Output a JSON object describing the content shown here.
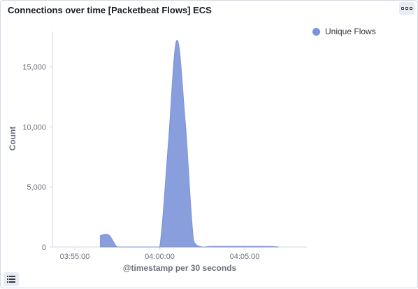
{
  "panel": {
    "title": "Connections over time [Packetbeat Flows] ECS",
    "options_icon": "ellipsis-icon",
    "legend_toggle_icon": "list-icon"
  },
  "chart_data": {
    "type": "area",
    "title": "Connections over time [Packetbeat Flows] ECS",
    "xlabel": "@timestamp per 30 seconds",
    "ylabel": "Count",
    "x_ticks": [
      "03:55:00",
      "04:00:00",
      "04:05:00"
    ],
    "y_ticks": [
      "0",
      "5,000",
      "10,000",
      "15,000"
    ],
    "ylim": [
      0,
      17500
    ],
    "series": [
      {
        "name": "Unique Flows",
        "color": "#7b93d9",
        "points": [
          {
            "x": "03:56:30",
            "y": 950
          },
          {
            "x": "03:57:00",
            "y": 1000
          },
          {
            "x": "03:57:30",
            "y": 0
          },
          {
            "x": "03:58:00",
            "y": 0
          },
          {
            "x": "03:58:30",
            "y": 0
          },
          {
            "x": "03:59:00",
            "y": 0
          },
          {
            "x": "03:59:30",
            "y": 0
          },
          {
            "x": "04:00:00",
            "y": 0
          },
          {
            "x": "04:00:30",
            "y": 8500
          },
          {
            "x": "04:01:00",
            "y": 17200
          },
          {
            "x": "04:01:30",
            "y": 10500
          },
          {
            "x": "04:02:00",
            "y": 500
          },
          {
            "x": "04:02:30",
            "y": 0
          },
          {
            "x": "04:03:00",
            "y": 50
          },
          {
            "x": "04:03:30",
            "y": 50
          },
          {
            "x": "04:04:00",
            "y": 50
          },
          {
            "x": "04:04:30",
            "y": 50
          },
          {
            "x": "04:05:00",
            "y": 50
          },
          {
            "x": "04:05:30",
            "y": 50
          },
          {
            "x": "04:06:00",
            "y": 50
          },
          {
            "x": "04:06:30",
            "y": 50
          },
          {
            "x": "04:07:00",
            "y": 0
          }
        ]
      }
    ],
    "grid": false,
    "legend_position": "top-right"
  }
}
